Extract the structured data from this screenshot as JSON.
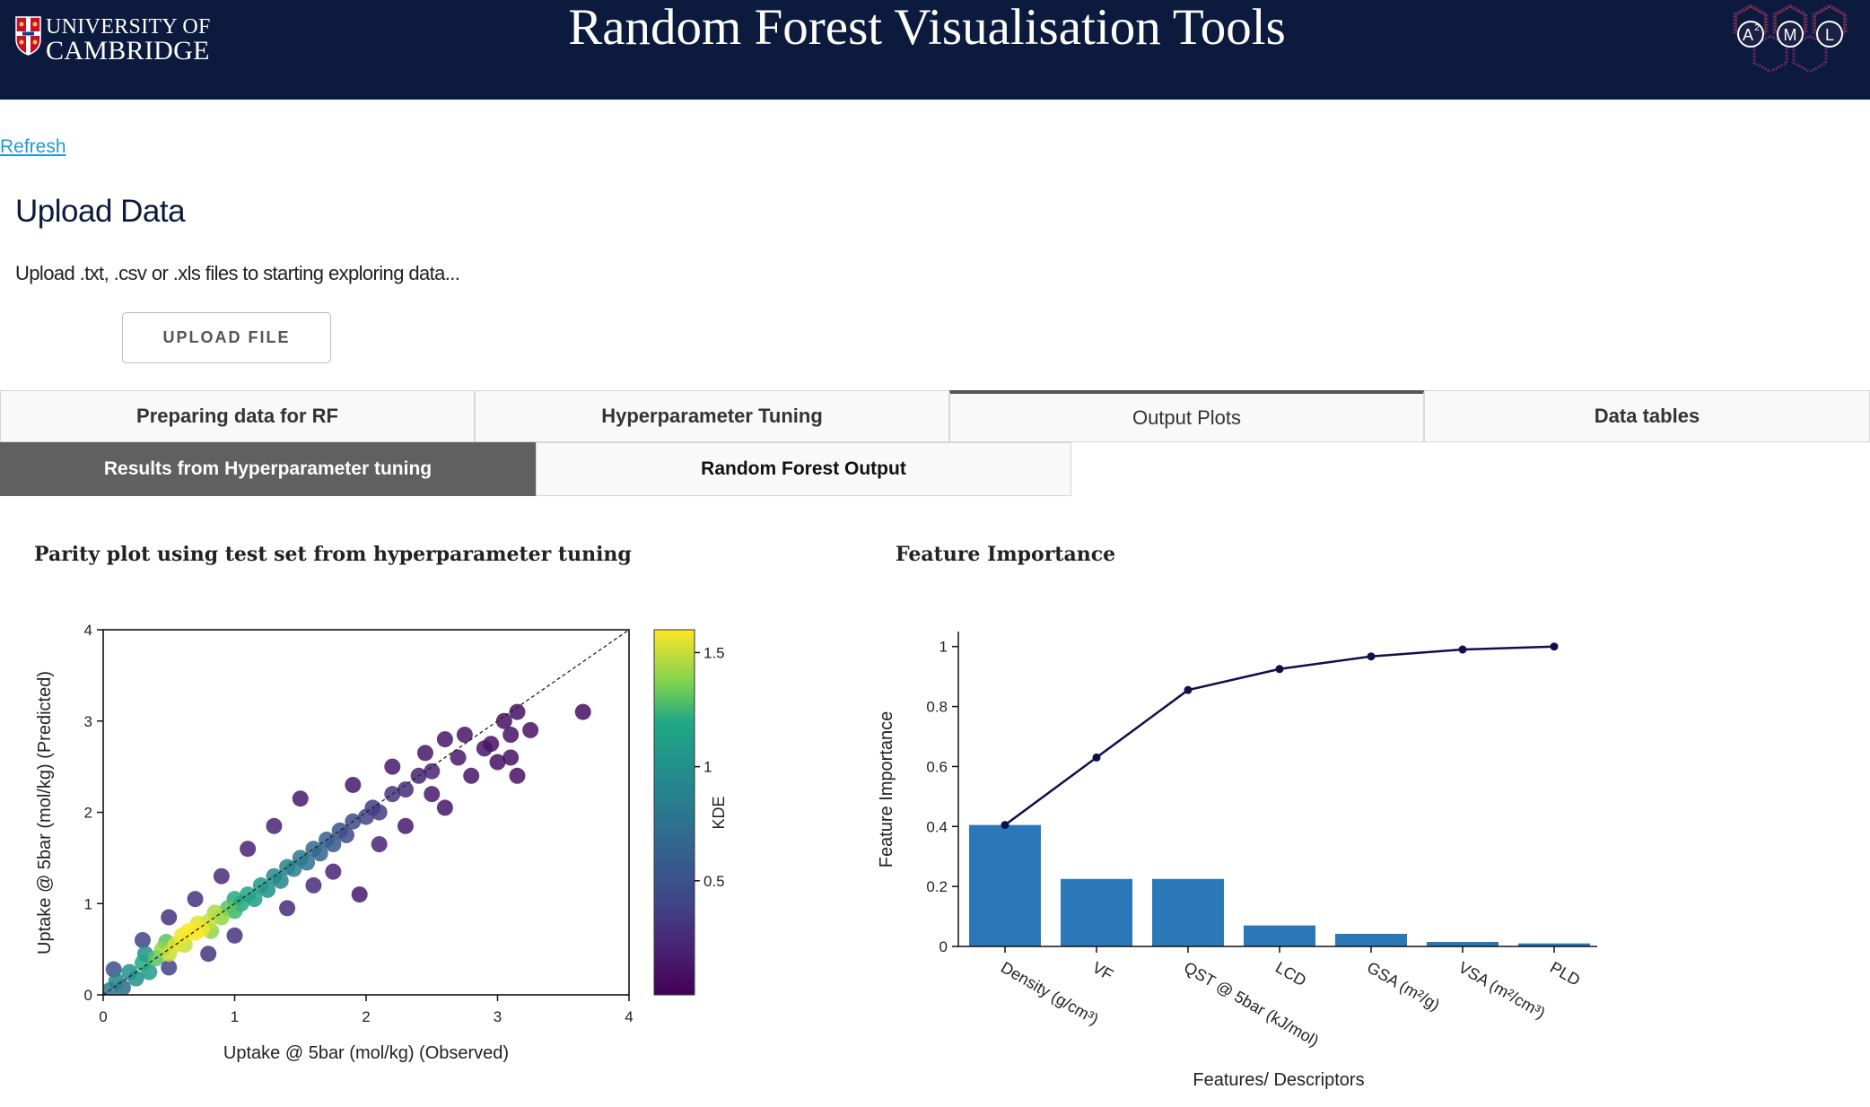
{
  "header": {
    "logo_line1": "UNIVERSITY OF",
    "logo_line2": "CAMBRIDGE",
    "title": "Random Forest Visualisation Tools",
    "aml_letters": [
      "A",
      "M",
      "L"
    ],
    "aml_superscript": "2",
    "bg_color": "#0b1a3d"
  },
  "refresh_label": "Refresh",
  "upload": {
    "title": "Upload Data",
    "description": "Upload .txt, .csv or .xls files to starting exploring data...",
    "button_label": "UPLOAD FILE"
  },
  "tabs": [
    {
      "label": "Preparing data for RF",
      "active": false
    },
    {
      "label": "Hyperparameter Tuning",
      "active": false
    },
    {
      "label": "Output Plots",
      "active": true
    },
    {
      "label": "Data tables",
      "active": false
    }
  ],
  "subtabs": [
    {
      "label": "Results from Hyperparameter tuning",
      "active": true
    },
    {
      "label": "Random Forest Output",
      "active": false
    }
  ],
  "chart_data": [
    {
      "type": "scatter",
      "title": "Parity plot using test set from hyperparameter tuning",
      "xlabel": "Uptake @ 5bar (mol/kg) (Observed)",
      "ylabel": "Uptake @ 5bar (mol/kg) (Predicted)",
      "xlim": [
        0,
        4
      ],
      "ylim": [
        0,
        4
      ],
      "xticks": [
        "0",
        "1",
        "2",
        "3",
        "4"
      ],
      "yticks": [
        "0",
        "1",
        "2",
        "3",
        "4"
      ],
      "colorbar": {
        "label": "KDE",
        "range": [
          0,
          1.6
        ],
        "ticks": [
          "0.5",
          "1",
          "1.5"
        ],
        "colormap": "viridis"
      },
      "parity_line": true,
      "points": [
        {
          "x": 0.05,
          "y": 0.05,
          "kde": 0.8
        },
        {
          "x": 0.1,
          "y": 0.15,
          "kde": 0.9
        },
        {
          "x": 0.15,
          "y": 0.08,
          "kde": 0.7
        },
        {
          "x": 0.08,
          "y": 0.28,
          "kde": 0.5
        },
        {
          "x": 0.2,
          "y": 0.25,
          "kde": 1.0
        },
        {
          "x": 0.25,
          "y": 0.18,
          "kde": 1.0
        },
        {
          "x": 0.3,
          "y": 0.35,
          "kde": 1.2
        },
        {
          "x": 0.35,
          "y": 0.25,
          "kde": 1.1
        },
        {
          "x": 0.32,
          "y": 0.45,
          "kde": 1.0
        },
        {
          "x": 0.4,
          "y": 0.4,
          "kde": 1.3
        },
        {
          "x": 0.45,
          "y": 0.5,
          "kde": 1.4
        },
        {
          "x": 0.5,
          "y": 0.45,
          "kde": 1.5
        },
        {
          "x": 0.48,
          "y": 0.58,
          "kde": 1.3
        },
        {
          "x": 0.55,
          "y": 0.55,
          "kde": 1.55
        },
        {
          "x": 0.6,
          "y": 0.65,
          "kde": 1.58
        },
        {
          "x": 0.62,
          "y": 0.55,
          "kde": 1.5
        },
        {
          "x": 0.65,
          "y": 0.7,
          "kde": 1.6
        },
        {
          "x": 0.7,
          "y": 0.68,
          "kde": 1.6
        },
        {
          "x": 0.72,
          "y": 0.78,
          "kde": 1.55
        },
        {
          "x": 0.75,
          "y": 0.72,
          "kde": 1.58
        },
        {
          "x": 0.8,
          "y": 0.8,
          "kde": 1.5
        },
        {
          "x": 0.82,
          "y": 0.7,
          "kde": 1.4
        },
        {
          "x": 0.85,
          "y": 0.9,
          "kde": 1.45
        },
        {
          "x": 0.9,
          "y": 0.85,
          "kde": 1.4
        },
        {
          "x": 0.95,
          "y": 0.95,
          "kde": 1.3
        },
        {
          "x": 1.0,
          "y": 0.92,
          "kde": 1.25
        },
        {
          "x": 1.0,
          "y": 1.05,
          "kde": 1.2
        },
        {
          "x": 1.05,
          "y": 1.0,
          "kde": 1.2
        },
        {
          "x": 1.1,
          "y": 1.1,
          "kde": 1.15
        },
        {
          "x": 1.15,
          "y": 1.05,
          "kde": 1.1
        },
        {
          "x": 1.2,
          "y": 1.2,
          "kde": 1.05
        },
        {
          "x": 1.25,
          "y": 1.15,
          "kde": 1.0
        },
        {
          "x": 1.3,
          "y": 1.3,
          "kde": 0.95
        },
        {
          "x": 1.35,
          "y": 1.25,
          "kde": 0.9
        },
        {
          "x": 1.4,
          "y": 1.4,
          "kde": 0.9
        },
        {
          "x": 1.45,
          "y": 1.38,
          "kde": 0.85
        },
        {
          "x": 1.5,
          "y": 1.5,
          "kde": 0.8
        },
        {
          "x": 1.55,
          "y": 1.45,
          "kde": 0.75
        },
        {
          "x": 1.6,
          "y": 1.6,
          "kde": 0.7
        },
        {
          "x": 1.65,
          "y": 1.55,
          "kde": 0.65
        },
        {
          "x": 1.7,
          "y": 1.7,
          "kde": 0.6
        },
        {
          "x": 1.75,
          "y": 1.65,
          "kde": 0.55
        },
        {
          "x": 1.8,
          "y": 1.8,
          "kde": 0.5
        },
        {
          "x": 1.85,
          "y": 1.75,
          "kde": 0.45
        },
        {
          "x": 1.9,
          "y": 1.9,
          "kde": 0.45
        },
        {
          "x": 2.0,
          "y": 1.95,
          "kde": 0.4
        },
        {
          "x": 2.05,
          "y": 2.05,
          "kde": 0.35
        },
        {
          "x": 2.1,
          "y": 2.0,
          "kde": 0.35
        },
        {
          "x": 2.2,
          "y": 2.2,
          "kde": 0.3
        },
        {
          "x": 2.3,
          "y": 2.25,
          "kde": 0.25
        },
        {
          "x": 2.4,
          "y": 2.4,
          "kde": 0.2
        },
        {
          "x": 2.5,
          "y": 2.45,
          "kde": 0.2
        },
        {
          "x": 0.3,
          "y": 0.6,
          "kde": 0.4
        },
        {
          "x": 0.5,
          "y": 0.85,
          "kde": 0.3
        },
        {
          "x": 0.7,
          "y": 1.05,
          "kde": 0.3
        },
        {
          "x": 0.9,
          "y": 1.3,
          "kde": 0.25
        },
        {
          "x": 1.1,
          "y": 1.6,
          "kde": 0.2
        },
        {
          "x": 1.3,
          "y": 1.85,
          "kde": 0.2
        },
        {
          "x": 1.5,
          "y": 2.15,
          "kde": 0.15
        },
        {
          "x": 1.9,
          "y": 2.3,
          "kde": 0.15
        },
        {
          "x": 0.5,
          "y": 0.3,
          "kde": 0.4
        },
        {
          "x": 0.8,
          "y": 0.45,
          "kde": 0.3
        },
        {
          "x": 1.0,
          "y": 0.65,
          "kde": 0.3
        },
        {
          "x": 1.4,
          "y": 0.95,
          "kde": 0.25
        },
        {
          "x": 1.6,
          "y": 1.2,
          "kde": 0.25
        },
        {
          "x": 1.95,
          "y": 1.1,
          "kde": 0.15
        },
        {
          "x": 1.75,
          "y": 1.35,
          "kde": 0.2
        },
        {
          "x": 2.1,
          "y": 1.65,
          "kde": 0.2
        },
        {
          "x": 2.3,
          "y": 1.85,
          "kde": 0.15
        },
        {
          "x": 2.5,
          "y": 2.2,
          "kde": 0.15
        },
        {
          "x": 2.6,
          "y": 2.05,
          "kde": 0.12
        },
        {
          "x": 2.7,
          "y": 2.6,
          "kde": 0.15
        },
        {
          "x": 2.8,
          "y": 2.4,
          "kde": 0.12
        },
        {
          "x": 2.9,
          "y": 2.7,
          "kde": 0.12
        },
        {
          "x": 2.75,
          "y": 2.85,
          "kde": 0.12
        },
        {
          "x": 3.0,
          "y": 2.55,
          "kde": 0.1
        },
        {
          "x": 3.1,
          "y": 2.6,
          "kde": 0.1
        },
        {
          "x": 3.15,
          "y": 2.4,
          "kde": 0.1
        },
        {
          "x": 3.05,
          "y": 3.0,
          "kde": 0.1
        },
        {
          "x": 3.15,
          "y": 3.1,
          "kde": 0.1
        },
        {
          "x": 3.25,
          "y": 2.9,
          "kde": 0.1
        },
        {
          "x": 2.6,
          "y": 2.8,
          "kde": 0.12
        },
        {
          "x": 2.95,
          "y": 2.75,
          "kde": 0.1
        },
        {
          "x": 3.65,
          "y": 3.1,
          "kde": 0.08
        },
        {
          "x": 2.45,
          "y": 2.65,
          "kde": 0.12
        },
        {
          "x": 2.2,
          "y": 2.5,
          "kde": 0.15
        },
        {
          "x": 3.1,
          "y": 2.85,
          "kde": 0.1
        }
      ]
    },
    {
      "type": "bar",
      "title": "Feature Importance",
      "xlabel": "Features/ Descriptors",
      "ylabel": "Feature Importance",
      "ylim": [
        0,
        1.05
      ],
      "yticks": [
        "0",
        "0.2",
        "0.4",
        "0.6",
        "0.8",
        "1"
      ],
      "categories": [
        "Density (g/cm³)",
        "VF",
        "QST @ 5bar (kJ/mol)",
        "LCD",
        "GSA (m²/g)",
        "VSA (m²/cm³)",
        "PLD"
      ],
      "values": [
        0.405,
        0.225,
        0.225,
        0.07,
        0.042,
        0.015,
        0.01
      ],
      "cumulative": [
        0.405,
        0.63,
        0.855,
        0.925,
        0.967,
        0.99,
        1.0
      ],
      "bar_color": "#2a78b8",
      "line_color": "#0f0f4a"
    }
  ]
}
